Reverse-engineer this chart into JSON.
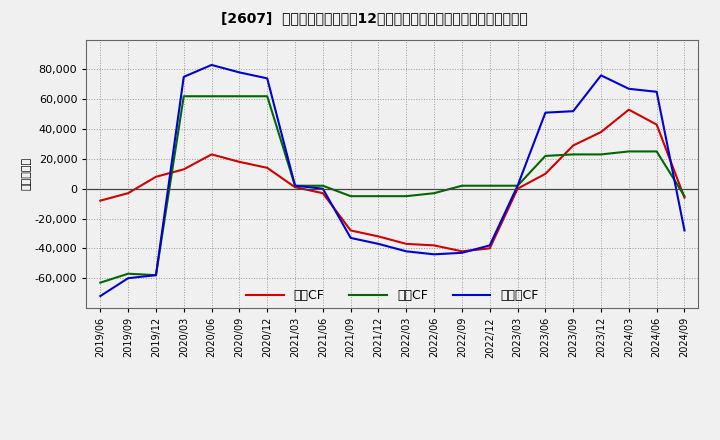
{
  "title": "[2607]  キャッシュフローの12か月移動合計の対前年同期増減額の推移",
  "ylabel": "（百万円）",
  "background_color": "#f0f0f0",
  "plot_bg_color": "#f0f0f0",
  "grid_color": "#888888",
  "ylim": [
    -80000,
    100000
  ],
  "yticks": [
    -60000,
    -40000,
    -20000,
    0,
    20000,
    40000,
    60000,
    80000
  ],
  "series": {
    "営業CF": {
      "color": "#cc0000",
      "data": {
        "2019/06": -8000,
        "2019/09": -3000,
        "2019/12": 8000,
        "2020/03": 13000,
        "2020/06": 23000,
        "2020/09": 18000,
        "2020/12": 14000,
        "2021/03": 1000,
        "2021/06": -3000,
        "2021/09": -28000,
        "2021/12": -32000,
        "2022/03": -37000,
        "2022/06": -38000,
        "2022/09": -42000,
        "2022/12": -40000,
        "2023/03": 0,
        "2023/06": 10000,
        "2023/09": 29000,
        "2023/12": 38000,
        "2024/03": 53000,
        "2024/06": 43000,
        "2024/09": -6000
      }
    },
    "投資CF": {
      "color": "#006600",
      "data": {
        "2019/06": -63000,
        "2019/09": -57000,
        "2019/12": -58000,
        "2020/03": 62000,
        "2020/06": 62000,
        "2020/09": 62000,
        "2020/12": 62000,
        "2021/03": 2000,
        "2021/06": 2000,
        "2021/09": -5000,
        "2021/12": -5000,
        "2022/03": -5000,
        "2022/06": -3000,
        "2022/09": 2000,
        "2022/12": 2000,
        "2023/03": 2000,
        "2023/06": 22000,
        "2023/09": 23000,
        "2023/12": 23000,
        "2024/03": 25000,
        "2024/06": 25000,
        "2024/09": -5000
      }
    },
    "フリーCF": {
      "color": "#0000cc",
      "data": {
        "2019/06": -72000,
        "2019/09": -60000,
        "2019/12": -58000,
        "2020/03": 75000,
        "2020/06": 83000,
        "2020/09": 78000,
        "2020/12": 74000,
        "2021/03": 2000,
        "2021/06": 0,
        "2021/09": -33000,
        "2021/12": -37000,
        "2022/03": -42000,
        "2022/06": -44000,
        "2022/09": -43000,
        "2022/12": -38000,
        "2023/03": 2000,
        "2023/06": 51000,
        "2023/09": 52000,
        "2023/12": 76000,
        "2024/03": 67000,
        "2024/06": 65000,
        "2024/09": -28000
      }
    }
  },
  "xtick_labels": [
    "2019/06",
    "2019/09",
    "2019/12",
    "2020/03",
    "2020/06",
    "2020/09",
    "2020/12",
    "2021/03",
    "2021/06",
    "2021/09",
    "2021/12",
    "2022/03",
    "2022/06",
    "2022/09",
    "2022/12",
    "2023/03",
    "2023/06",
    "2023/09",
    "2023/12",
    "2024/03",
    "2024/06",
    "2024/09"
  ],
  "legend_labels": [
    "営業CF",
    "投資CF",
    "フリーCF"
  ],
  "legend_colors": [
    "#cc0000",
    "#006600",
    "#0000cc"
  ]
}
